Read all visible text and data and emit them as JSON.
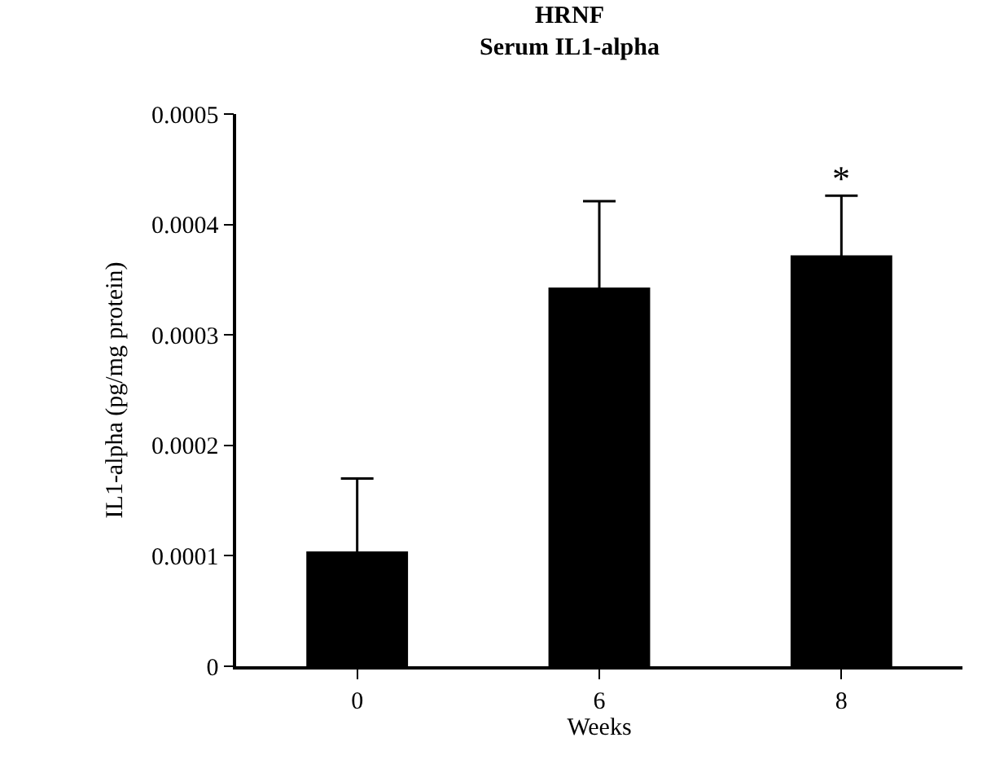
{
  "chart_data": {
    "type": "bar",
    "title": "HRNF",
    "subtitle": "Serum IL1-alpha",
    "xlabel": "Weeks",
    "ylabel": "IL1-alpha (pg/mg protein)",
    "categories": [
      "0",
      "6",
      "8"
    ],
    "values": [
      0.000104,
      0.000343,
      0.000372
    ],
    "errors": [
      6.6e-05,
      7.8e-05,
      5.4e-05
    ],
    "color": "#000000",
    "ylim": [
      0,
      0.0005
    ],
    "yticks": [
      0,
      0.0001,
      0.0002,
      0.0003,
      0.0004,
      0.0005
    ],
    "annotations": [
      {
        "text": "*",
        "x": "8",
        "y": 0.000426
      }
    ]
  }
}
